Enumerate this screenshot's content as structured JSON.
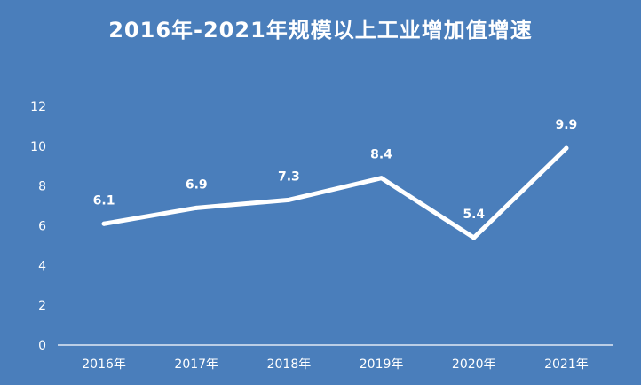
{
  "chart_data": {
    "type": "line",
    "title": "2016年-2021年规模以上工业增加值增速",
    "categories": [
      "2016年",
      "2017年",
      "2018年",
      "2019年",
      "2020年",
      "2021年"
    ],
    "values": [
      6.1,
      6.9,
      7.3,
      8.4,
      5.4,
      9.9
    ],
    "data_labels": [
      "6.1",
      "6.9",
      "7.3",
      "8.4",
      "5.4",
      "9.9"
    ],
    "y_ticks": [
      "0",
      "2",
      "4",
      "6",
      "8",
      "10",
      "12"
    ],
    "ylim": [
      0,
      12
    ],
    "grid": false,
    "drop_lines": true,
    "colors": {
      "background": "#4a7ebb",
      "line": "#ffffff",
      "text": "#ffffff"
    }
  }
}
